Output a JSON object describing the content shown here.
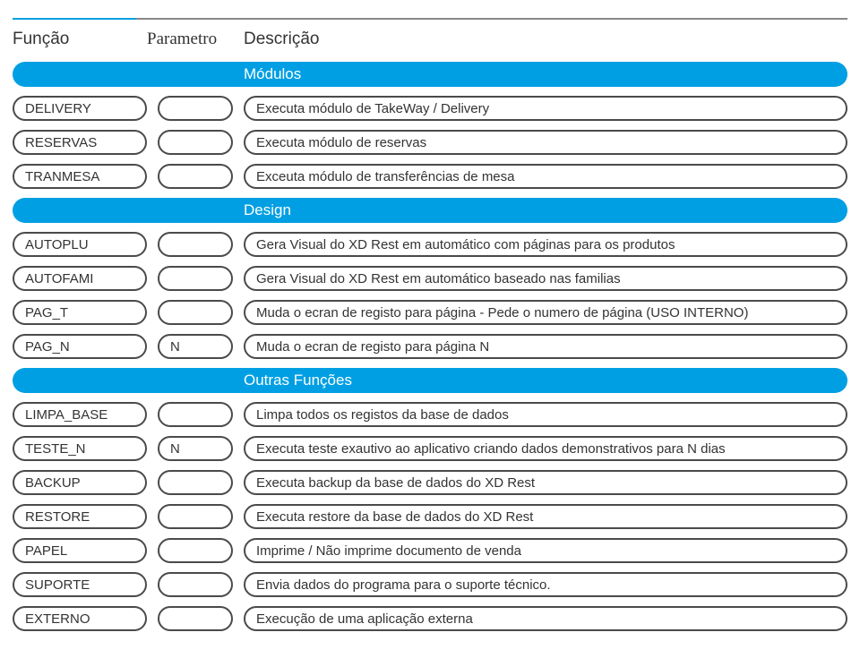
{
  "colors": {
    "accent": "#009fe3",
    "border": "#4a4a4a",
    "rule": "#888888",
    "text": "#333333",
    "white": "#ffffff"
  },
  "header": {
    "funcao": "Função",
    "parametro": "Parametro",
    "descricao": "Descrição"
  },
  "sections": [
    {
      "title": "Módulos",
      "rows": [
        {
          "func": "DELIVERY",
          "param": "",
          "desc": "Executa módulo de TakeWay / Delivery"
        },
        {
          "func": "RESERVAS",
          "param": "",
          "desc": "Executa módulo de reservas"
        },
        {
          "func": "TRANMESA",
          "param": "",
          "desc": "Exceuta módulo de transferências de mesa"
        }
      ]
    },
    {
      "title": "Design",
      "rows": [
        {
          "func": "AUTOPLU",
          "param": "",
          "desc": "Gera Visual do XD Rest em automático com páginas para os produtos"
        },
        {
          "func": "AUTOFAMI",
          "param": "",
          "desc": "Gera Visual do XD Rest em automático baseado nas familias"
        },
        {
          "func": "PAG_T",
          "param": "",
          "desc": "Muda o ecran de registo para página - Pede o numero de página (USO INTERNO)"
        },
        {
          "func": "PAG_N",
          "param": "N",
          "desc": "Muda o ecran de registo para página N"
        }
      ]
    },
    {
      "title": "Outras Funções",
      "rows": [
        {
          "func": "LIMPA_BASE",
          "param": "",
          "desc": "Limpa todos os registos da base de dados"
        },
        {
          "func": "TESTE_N",
          "param": "N",
          "desc": "Executa teste exautivo ao aplicativo criando dados demonstrativos para N dias"
        },
        {
          "func": "BACKUP",
          "param": "",
          "desc": "Executa backup da base de dados do XD Rest"
        },
        {
          "func": "RESTORE",
          "param": "",
          "desc": "Executa restore da base de dados do XD Rest"
        },
        {
          "func": "PAPEL",
          "param": "",
          "desc": "Imprime / Não imprime documento de venda"
        },
        {
          "func": "SUPORTE",
          "param": "",
          "desc": "Envia dados do programa para o suporte técnico."
        },
        {
          "func": "EXTERNO",
          "param": "",
          "desc": "Execução de uma aplicação externa"
        }
      ]
    }
  ]
}
